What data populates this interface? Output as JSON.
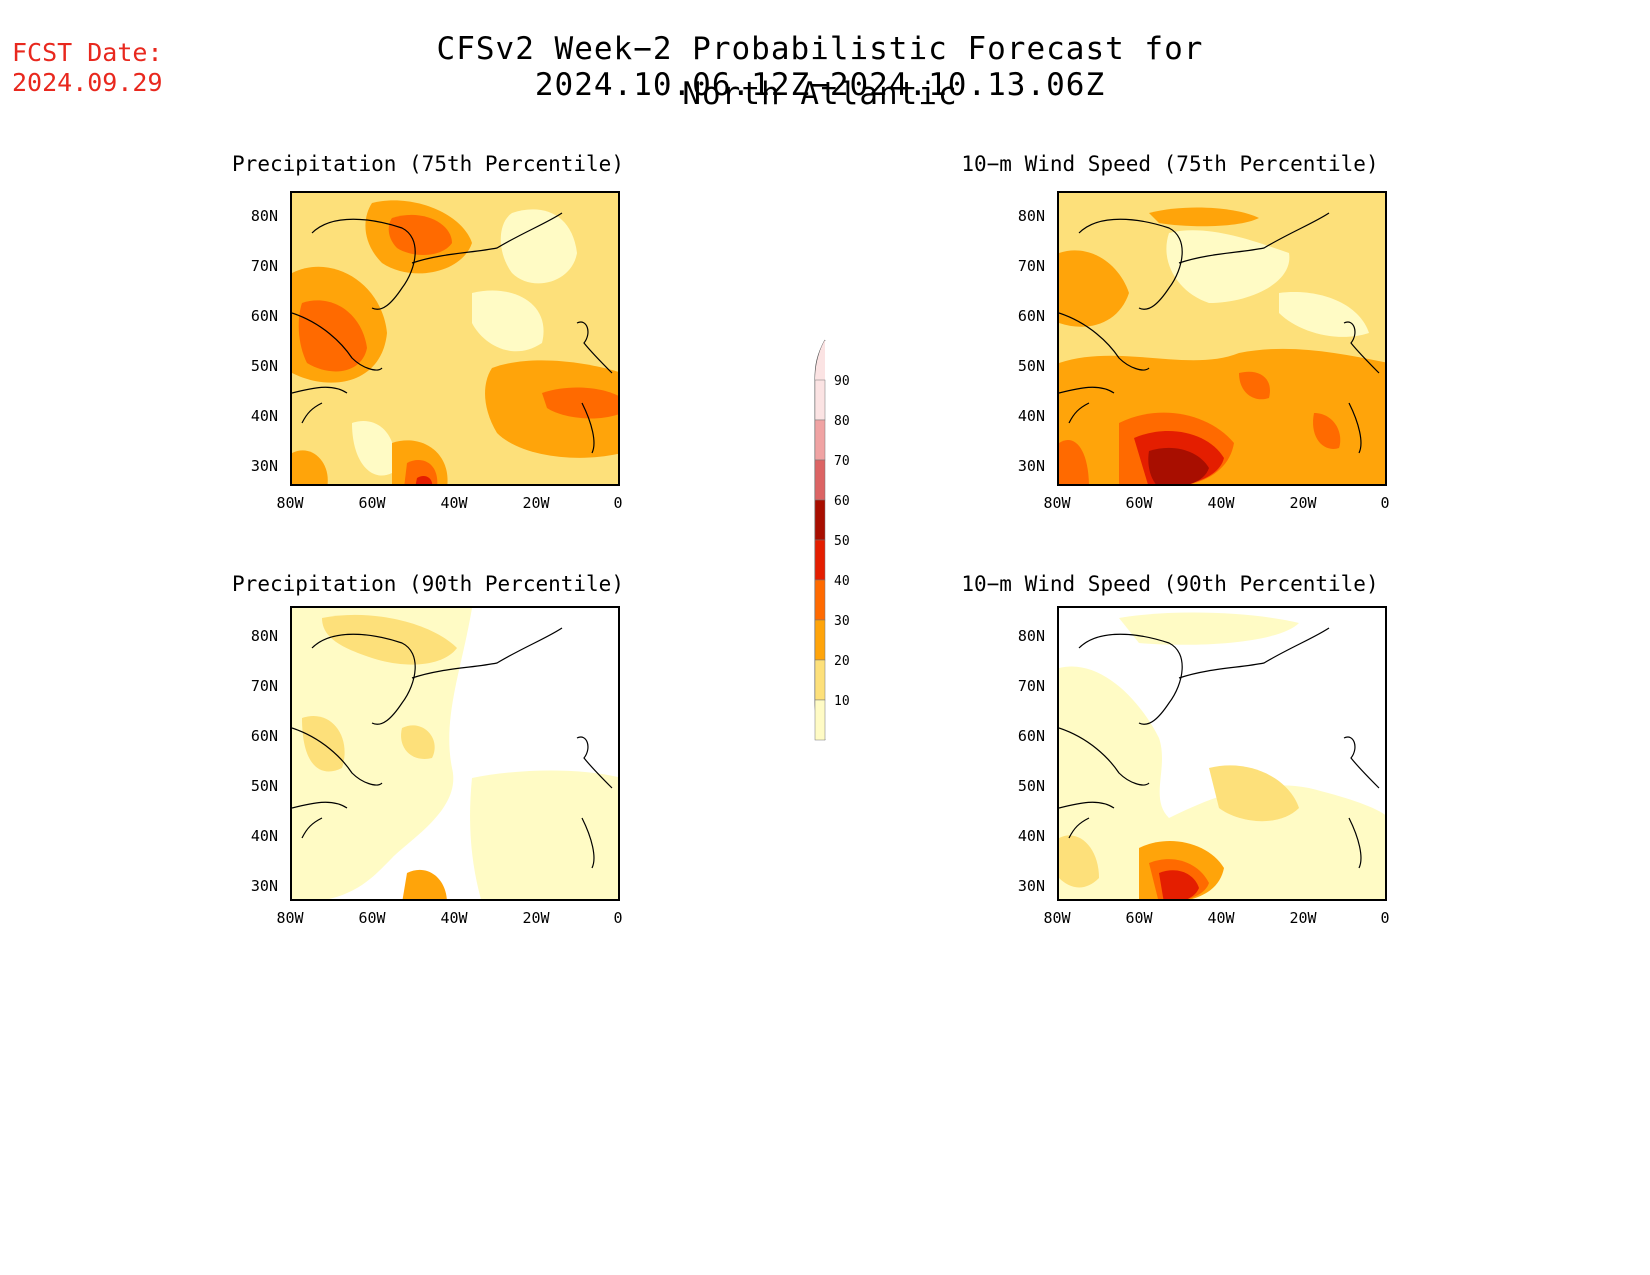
{
  "header": {
    "fcst_label": "FCST Date:",
    "fcst_date": "2024.09.29",
    "title": "CFSv2 Week−2 Probabilistic Forecast for 2024.10.06.12Z−2024.10.13.06Z",
    "region": "North Atlantic"
  },
  "axes": {
    "lat_labels": [
      "80N",
      "70N",
      "60N",
      "50N",
      "40N",
      "30N"
    ],
    "lon_labels": [
      "80W",
      "60W",
      "40W",
      "20W",
      "0"
    ]
  },
  "panels": {
    "precip75": {
      "title": "Precipitation (75th Percentile)"
    },
    "wind75": {
      "title": "10−m Wind Speed (75th Percentile)"
    },
    "precip90": {
      "title": "Precipitation (90th Percentile)"
    },
    "wind90": {
      "title": "10−m Wind Speed (90th Percentile)"
    }
  },
  "colorbar": {
    "labels": [
      "90",
      "80",
      "70",
      "60",
      "50",
      "40",
      "30",
      "20",
      "10"
    ],
    "colors": [
      "#fbe3e3",
      "#f0a3a3",
      "#dc6464",
      "#a80e00",
      "#e41e00",
      "#ff6a00",
      "#ffa40a",
      "#fde07a",
      "#fffbc5"
    ]
  }
}
